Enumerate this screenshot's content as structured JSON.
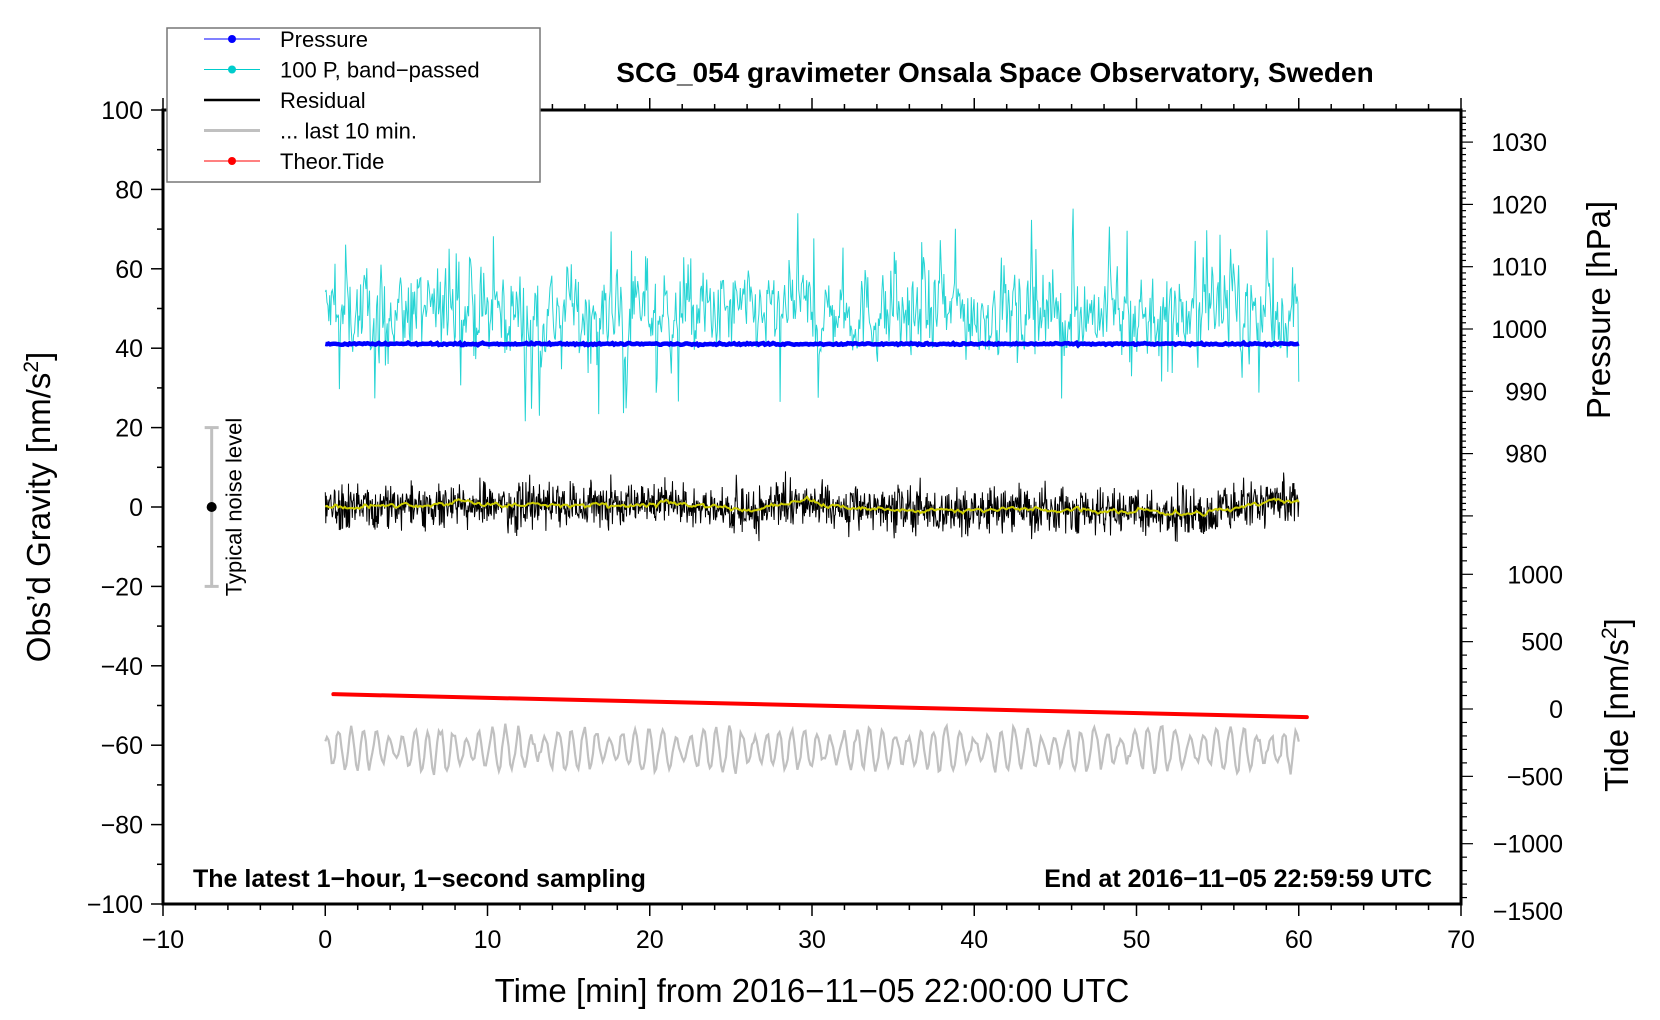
{
  "chart_data": {
    "type": "line",
    "title": "SCG_054 gravimeter Onsala Space Observatory, Sweden",
    "xlabel": "Time [min] from 2016−11−05 22:00:00 UTC",
    "ylabel": "Obs’d Gravity [nm/s",
    "ylabel_sup": "2",
    "ylabel_end": "]",
    "y2_pressure_label": "Pressure [hPa]",
    "y2_tide_label": "Tide [nm/s",
    "y2_tide_sup": "2",
    "y2_tide_end": "]",
    "annotation_left": "The latest 1−hour, 1−second sampling",
    "annotation_right": "End at 2016−11−05 22:59:59 UTC",
    "noise_label": "Typical noise level",
    "noise_level": {
      "x": -7,
      "center": 0,
      "low": -20,
      "high": 20
    },
    "xlim": [
      -10,
      70
    ],
    "ylim": [
      -100,
      100
    ],
    "pressure_lim_at_gravity": {
      "p_at_0": 991.7,
      "p_per_gravity_unit": 0.637
    },
    "tide_lim": [
      -1500,
      1500
    ],
    "x_ticks": [
      -10,
      0,
      10,
      20,
      30,
      40,
      50,
      60,
      70
    ],
    "y_ticks": [
      -100,
      -80,
      -60,
      -40,
      -20,
      0,
      20,
      40,
      60,
      80,
      100
    ],
    "pressure_ticks": [
      980,
      990,
      1000,
      1010,
      1020,
      1030
    ],
    "tide_ticks": [
      -1500,
      -1000,
      -500,
      0,
      500,
      1000
    ],
    "grid": false,
    "legend_position": "top-left",
    "legend": [
      {
        "label": "Pressure",
        "color": "#0000ff",
        "marker": true
      },
      {
        "label": "100 P, band−passed",
        "color": "#00cccc",
        "marker": true
      },
      {
        "label": "Residual",
        "color": "#000000",
        "marker": false
      },
      {
        "label": "... last 10 min.",
        "color": "#c0c0c0",
        "marker": false
      },
      {
        "label": "Theor.Tide",
        "color": "#ff0000",
        "marker": true
      }
    ],
    "series": [
      {
        "name": "Pressure",
        "units": "hPa",
        "x_range": [
          0,
          60
        ],
        "level": 997.6,
        "noise": 0.15,
        "color": "#0000ff"
      },
      {
        "name": "100 P, band-passed",
        "units": "nm/s2 (gravity axis)",
        "x_range": [
          0,
          60
        ],
        "center": 49,
        "amplitude": 8,
        "spike_max": 81,
        "spike_min": 7,
        "color": "#00cccc"
      },
      {
        "name": "Residual",
        "units": "nm/s2",
        "x_range": [
          0,
          60
        ],
        "center": 0,
        "amplitude": 4.5,
        "color": "#000000"
      },
      {
        "name": "Residual smoothed",
        "units": "nm/s2",
        "x_range": [
          0,
          60
        ],
        "center": 0,
        "amplitude": 1.2,
        "color": "#cccc00"
      },
      {
        "name": "... last 10 min.",
        "units": "nm/s2 (gravity axis)",
        "x_range": [
          0,
          60
        ],
        "center": -61,
        "amplitude": 5,
        "color": "#c0c0c0"
      },
      {
        "name": "Theor.Tide",
        "units": "nm/s2",
        "x": [
          0.5,
          60.5
        ],
        "y": [
          110,
          -60
        ],
        "color": "#ff0000"
      }
    ]
  }
}
